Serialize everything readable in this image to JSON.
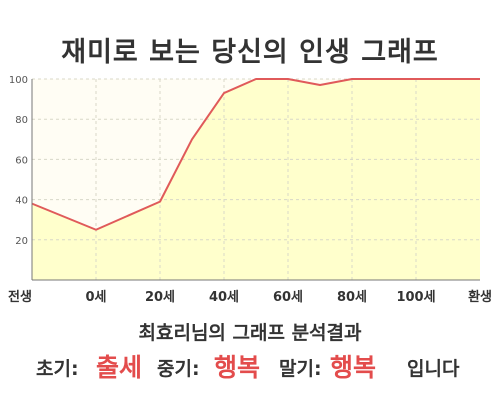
{
  "header": {
    "title": "재미로 보는 당신의 인생 그래프"
  },
  "chart_data": {
    "type": "area",
    "title": "재미로 보는 당신의 인생 그래프",
    "xlabel": "",
    "ylabel": "",
    "ylim": [
      0,
      100
    ],
    "yticks": [
      20,
      40,
      60,
      80,
      100
    ],
    "xticks": [
      "전생",
      "0세",
      "20세",
      "40세",
      "60세",
      "80세",
      "100세",
      "환생"
    ],
    "series": [
      {
        "x": [
          -20,
          0,
          20,
          30,
          40,
          50,
          60,
          70,
          80,
          90,
          100,
          120
        ],
        "values": [
          38,
          25,
          39,
          70,
          93,
          100,
          100,
          97,
          100,
          100,
          100,
          100
        ]
      }
    ],
    "grid": true,
    "legend": "none"
  },
  "result": {
    "heading": "최효리님의 그래프 분석결과",
    "early_label": "초기:",
    "early_value": "출세",
    "middle_label": "중기:",
    "middle_value": "행복",
    "late_label": "말기:",
    "late_value": "행복",
    "ending": "입니다"
  },
  "colors": {
    "line": "#e05a5a",
    "fill": "#ffffcc",
    "highlight": "#e34c4c",
    "text": "#333333"
  }
}
